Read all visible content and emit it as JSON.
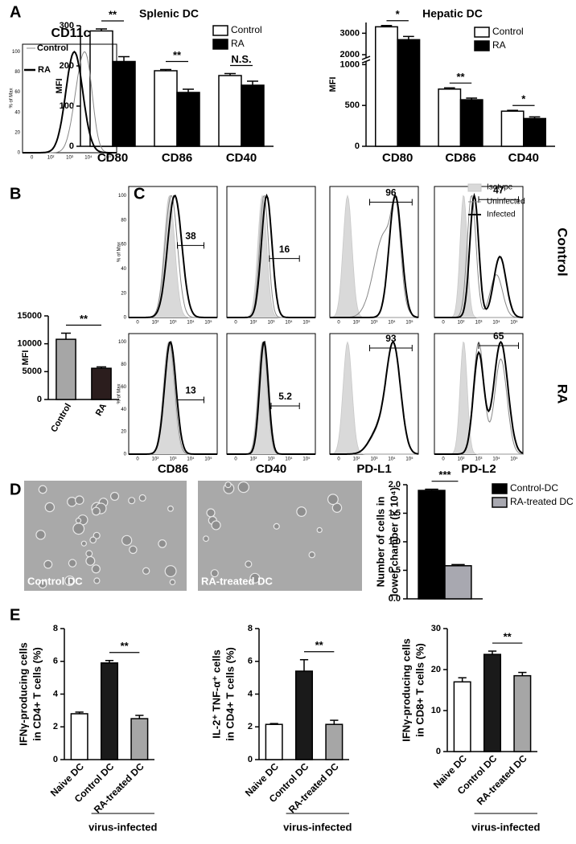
{
  "panel_labels": [
    "A",
    "B",
    "C",
    "D",
    "E"
  ],
  "chart_data": [
    {
      "type": "bar",
      "title": "Splenic DC",
      "categories": [
        "CD80",
        "CD86",
        "CD40"
      ],
      "series": [
        {
          "name": "Control",
          "color": "#ffffff",
          "values": [
            287,
            188,
            176
          ],
          "errors": [
            5,
            3,
            5
          ]
        },
        {
          "name": "RA",
          "color": "#000000",
          "values": [
            211,
            134,
            152
          ],
          "errors": [
            12,
            8,
            10
          ]
        }
      ],
      "ylim": [
        0,
        300
      ],
      "yticks": [
        0,
        100,
        200,
        300
      ],
      "y_label": [
        "MFI"
      ],
      "significance": [
        {
          "label": "**",
          "categories": [
            0
          ]
        },
        {
          "label": "**",
          "categories": [
            1
          ]
        },
        {
          "label": "N.S.",
          "categories": [
            2
          ]
        }
      ]
    },
    {
      "type": "bar",
      "title": "Hepatic DC",
      "categories": [
        "CD80",
        "CD86",
        "CD40"
      ],
      "series": [
        {
          "name": "Control",
          "color": "#ffffff",
          "values": [
            3300,
            700,
            430
          ],
          "errors": [
            60,
            15,
            10
          ]
        },
        {
          "name": "RA",
          "color": "#000000",
          "values": [
            2700,
            570,
            340
          ],
          "errors": [
            150,
            20,
            20
          ]
        }
      ],
      "ylim": [
        0,
        3500
      ],
      "ybreak": [
        1000,
        2000
      ],
      "yticks": [
        0,
        500,
        1000,
        2000,
        3000
      ],
      "y_label": [
        "MFI"
      ],
      "significance": [
        {
          "label": "*",
          "categories": [
            0
          ]
        },
        {
          "label": "**",
          "categories": [
            1
          ]
        },
        {
          "label": "*",
          "categories": [
            2
          ]
        }
      ]
    },
    {
      "type": "bar",
      "categories": [
        "Control",
        "RA"
      ],
      "series": [
        {
          "colors": [
            "#a6a6a6",
            "#2b1d1d"
          ],
          "values": [
            10800,
            5600
          ],
          "errors": [
            1100,
            250
          ]
        }
      ],
      "ylim": [
        0,
        15000
      ],
      "yticks": [
        0,
        5000,
        10000,
        15000
      ],
      "y_label": [
        "MFI"
      ],
      "significance": [
        {
          "label": "**",
          "categories": [
            0,
            1
          ]
        }
      ]
    },
    {
      "type": "bar",
      "categories": [
        null
      ],
      "series": [
        {
          "name": "Control-DC",
          "color": "#000000",
          "values": [
            1.9
          ],
          "errors": [
            0.02
          ]
        },
        {
          "name": "RA-treated DC",
          "color": "#a8a8b0",
          "values": [
            0.58
          ],
          "errors": [
            0.02
          ]
        }
      ],
      "ylim": [
        0,
        2.0
      ],
      "yticks": [
        {
          "value": 0,
          "label": "0.0"
        },
        0.5,
        {
          "value": 1,
          "label": "1.0"
        },
        1.5,
        {
          "value": 2,
          "label": "2.0"
        }
      ],
      "y_label": [
        "Number of cells in",
        "lower chamber (× 10⁴)"
      ],
      "significance": [
        {
          "label": "***",
          "categories": [
            0
          ]
        }
      ]
    },
    {
      "type": "bar",
      "categories": [
        "Naive DC",
        "Control DC",
        "RA-treated DC"
      ],
      "series": [
        {
          "colors": [
            "#ffffff",
            "#1a1a1a",
            "#a6a6a6"
          ],
          "values": [
            2.8,
            5.9,
            2.5
          ],
          "errors": [
            0.1,
            0.15,
            0.2
          ]
        }
      ],
      "ylim": [
        0,
        8
      ],
      "yticks": [
        0,
        2,
        4,
        6,
        8
      ],
      "y_label": [
        "IFNγ-producing cells",
        "in CD4+ T cells (%)"
      ],
      "significance": [
        {
          "label": "**",
          "categories": [
            1,
            2
          ]
        }
      ],
      "group_label": "virus-infected"
    },
    {
      "type": "bar",
      "categories": [
        "Naive DC",
        "Control DC",
        "RA-treated DC"
      ],
      "series": [
        {
          "colors": [
            "#ffffff",
            "#1a1a1a",
            "#a6a6a6"
          ],
          "values": [
            2.15,
            5.4,
            2.15
          ],
          "errors": [
            0.05,
            0.7,
            0.25
          ]
        }
      ],
      "ylim": [
        0,
        8
      ],
      "yticks": [
        0,
        2,
        4,
        6,
        8
      ],
      "y_label": [
        "IL-2⁺ TNF-α⁺ cells",
        "in CD4+ T cells (%)"
      ],
      "significance": [
        {
          "label": "**",
          "categories": [
            1,
            2
          ]
        }
      ],
      "group_label": "virus-infected"
    },
    {
      "type": "bar",
      "categories": [
        "Naive DC",
        "Control DC",
        "RA-treated DC"
      ],
      "series": [
        {
          "colors": [
            "#ffffff",
            "#1a1a1a",
            "#a6a6a6"
          ],
          "values": [
            17,
            23.7,
            18.5
          ],
          "errors": [
            1,
            0.8,
            0.8
          ]
        }
      ],
      "ylim": [
        0,
        30
      ],
      "yticks": [
        0,
        10,
        20,
        30
      ],
      "y_label": [
        "IFNγ-producing cells",
        "in CD8+ T cells (%)"
      ],
      "significance": [
        {
          "label": "**",
          "categories": [
            1,
            2
          ]
        }
      ],
      "group_label": "virus-infected"
    }
  ],
  "flow": {
    "cd11c": {
      "title": "CD11c",
      "legend": [
        "Control",
        "RA"
      ]
    },
    "legend": [
      "Isotype",
      "Uninfected",
      "Infected"
    ],
    "markers": [
      "CD86",
      "CD40",
      "PD-L1",
      "PD-L2"
    ],
    "rows": [
      {
        "label": "Control",
        "gates": [
          38,
          16,
          96,
          47
        ]
      },
      {
        "label": "RA",
        "gates": [
          13,
          5.2,
          93,
          65
        ]
      }
    ],
    "xticks": [
      "0",
      "10²",
      "10³",
      "10⁴",
      "10⁵"
    ],
    "yticks": [
      "0",
      "20",
      "40",
      "60",
      "80",
      "100"
    ],
    "y_label": "% of Max"
  },
  "images": [
    {
      "caption": "Control DC"
    },
    {
      "caption": "RA-treated DC"
    }
  ]
}
